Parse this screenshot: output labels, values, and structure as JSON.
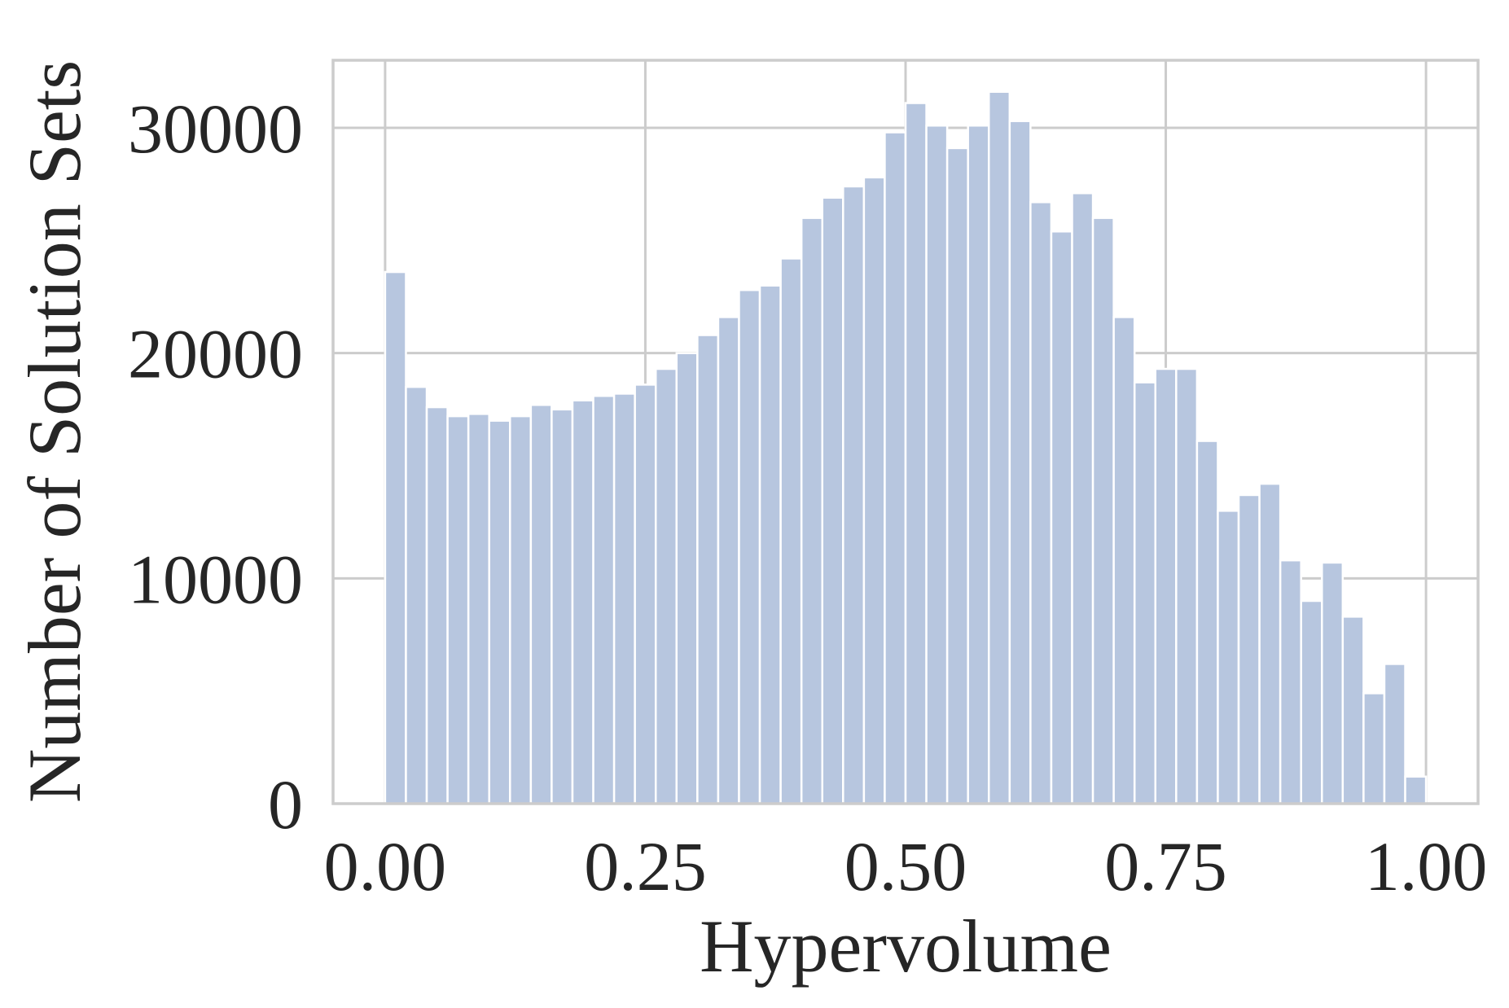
{
  "chart_data": {
    "type": "bar",
    "title": "",
    "xlabel": "Hypervolume",
    "ylabel": "Number of Solution Sets",
    "xlim": [
      -0.05,
      1.05
    ],
    "ylim": [
      0,
      33000
    ],
    "xticks": [
      0.0,
      0.25,
      0.5,
      0.75,
      1.0
    ],
    "xtick_labels": [
      "0.00",
      "0.25",
      "0.50",
      "0.75",
      "1.00"
    ],
    "yticks": [
      0,
      10000,
      20000,
      30000
    ],
    "ytick_labels": [
      "0",
      "10000",
      "20000",
      "30000"
    ],
    "grid": true,
    "legend": "none",
    "bar_color": "#b7c6df",
    "bin_width": 0.02,
    "bin_start": 0.0,
    "values": [
      23600,
      18500,
      17600,
      17200,
      17300,
      17000,
      17200,
      17700,
      17500,
      17900,
      18100,
      18200,
      18600,
      19300,
      20000,
      20800,
      21600,
      22800,
      23000,
      24200,
      26000,
      26900,
      27400,
      27800,
      29800,
      31100,
      30100,
      29100,
      30100,
      31600,
      30300,
      26700,
      25400,
      27100,
      26000,
      21600,
      18700,
      19300,
      19300,
      16100,
      13000,
      13700,
      14200,
      10800,
      9000,
      10700,
      8300,
      4900,
      6200,
      1200
    ]
  }
}
